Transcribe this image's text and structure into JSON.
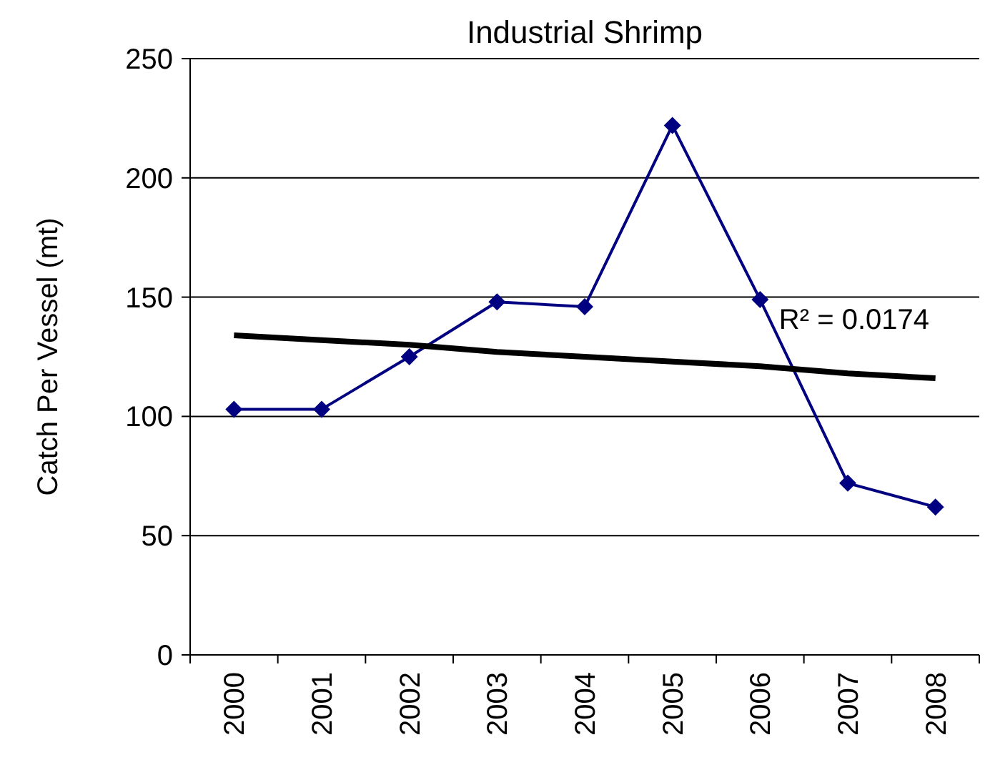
{
  "chart_data": {
    "type": "line",
    "title": "Industrial Shrimp",
    "ylabel": "Catch Per Vessel (mt)",
    "categories": [
      "2000",
      "2001",
      "2002",
      "2003",
      "2004",
      "2005",
      "2006",
      "2007",
      "2008"
    ],
    "series": [
      {
        "color": "#000080",
        "values": [
          103,
          103,
          125,
          148,
          146,
          222,
          149,
          72,
          62
        ],
        "marker": "diamond"
      },
      {
        "type": "line",
        "color": "#000000",
        "values": [
          134,
          132,
          130,
          127,
          125,
          123,
          121,
          118,
          116
        ],
        "marker": "none"
      }
    ],
    "annotations": [
      "R² = 0.0174"
    ],
    "ylim": [
      0,
      250
    ],
    "yticks": [
      0,
      50,
      100,
      150,
      200,
      250
    ],
    "grid": "y"
  }
}
